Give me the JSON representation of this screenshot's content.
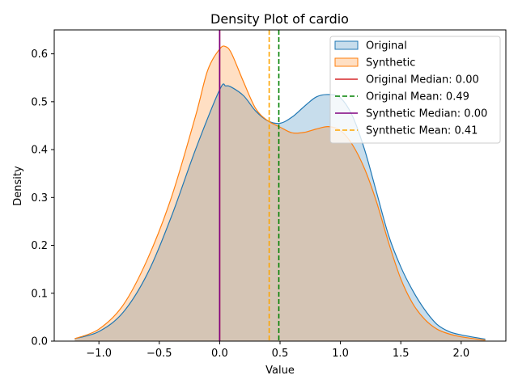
{
  "chart_data": {
    "type": "area",
    "title": "Density Plot of cardio",
    "xlabel": "Value",
    "ylabel": "Density",
    "xlim": [
      -1.37,
      2.37
    ],
    "ylim": [
      0,
      0.65
    ],
    "xticks": [
      -1.0,
      -0.5,
      0.0,
      0.5,
      1.0,
      1.5,
      2.0
    ],
    "xtick_labels": [
      "−1.0",
      "−0.5",
      "0.0",
      "0.5",
      "1.0",
      "1.5",
      "2.0"
    ],
    "yticks": [
      0.0,
      0.1,
      0.2,
      0.3,
      0.4,
      0.5,
      0.6
    ],
    "ytick_labels": [
      "0.0",
      "0.1",
      "0.2",
      "0.3",
      "0.4",
      "0.5",
      "0.6"
    ],
    "grid": false,
    "legend_position": "top-right",
    "series": [
      {
        "name": "Original",
        "color": "#1f77b4",
        "fill": "#aac8e4",
        "x": [
          -1.2,
          -1.0,
          -0.8,
          -0.6,
          -0.4,
          -0.2,
          0.0,
          0.05,
          0.1,
          0.2,
          0.3,
          0.4,
          0.5,
          0.6,
          0.7,
          0.8,
          0.9,
          1.0,
          1.1,
          1.2,
          1.3,
          1.4,
          1.5,
          1.6,
          1.7,
          1.8,
          1.9,
          2.0,
          2.2
        ],
        "y": [
          0.005,
          0.02,
          0.06,
          0.14,
          0.26,
          0.4,
          0.525,
          0.533,
          0.53,
          0.512,
          0.48,
          0.46,
          0.455,
          0.468,
          0.49,
          0.51,
          0.515,
          0.508,
          0.47,
          0.4,
          0.31,
          0.22,
          0.155,
          0.105,
          0.065,
          0.035,
          0.02,
          0.013,
          0.004
        ]
      },
      {
        "name": "Synthetic",
        "color": "#ff7f0e",
        "fill": "#ffc999",
        "x": [
          -1.2,
          -1.0,
          -0.8,
          -0.6,
          -0.4,
          -0.2,
          -0.1,
          0.0,
          0.05,
          0.1,
          0.2,
          0.3,
          0.4,
          0.5,
          0.6,
          0.7,
          0.8,
          0.9,
          1.0,
          1.1,
          1.2,
          1.3,
          1.4,
          1.5,
          1.6,
          1.7,
          1.8,
          1.9,
          2.0,
          2.2
        ],
        "y": [
          0.005,
          0.025,
          0.075,
          0.17,
          0.3,
          0.47,
          0.565,
          0.61,
          0.615,
          0.6,
          0.54,
          0.485,
          0.46,
          0.447,
          0.435,
          0.436,
          0.443,
          0.448,
          0.44,
          0.41,
          0.36,
          0.29,
          0.205,
          0.13,
          0.078,
          0.045,
          0.025,
          0.015,
          0.009,
          0.002
        ]
      }
    ],
    "vlines": [
      {
        "name": "Original Median: 0.00",
        "x": 0.0,
        "color": "#d62728",
        "style": "solid"
      },
      {
        "name": "Original Mean: 0.49",
        "x": 0.49,
        "color": "#008000",
        "style": "dashed"
      },
      {
        "name": "Synthetic Median: 0.00",
        "x": 0.0,
        "color": "#800080",
        "style": "solid"
      },
      {
        "name": "Synthetic Mean: 0.41",
        "x": 0.41,
        "color": "#ffa500",
        "style": "dashed"
      }
    ]
  }
}
